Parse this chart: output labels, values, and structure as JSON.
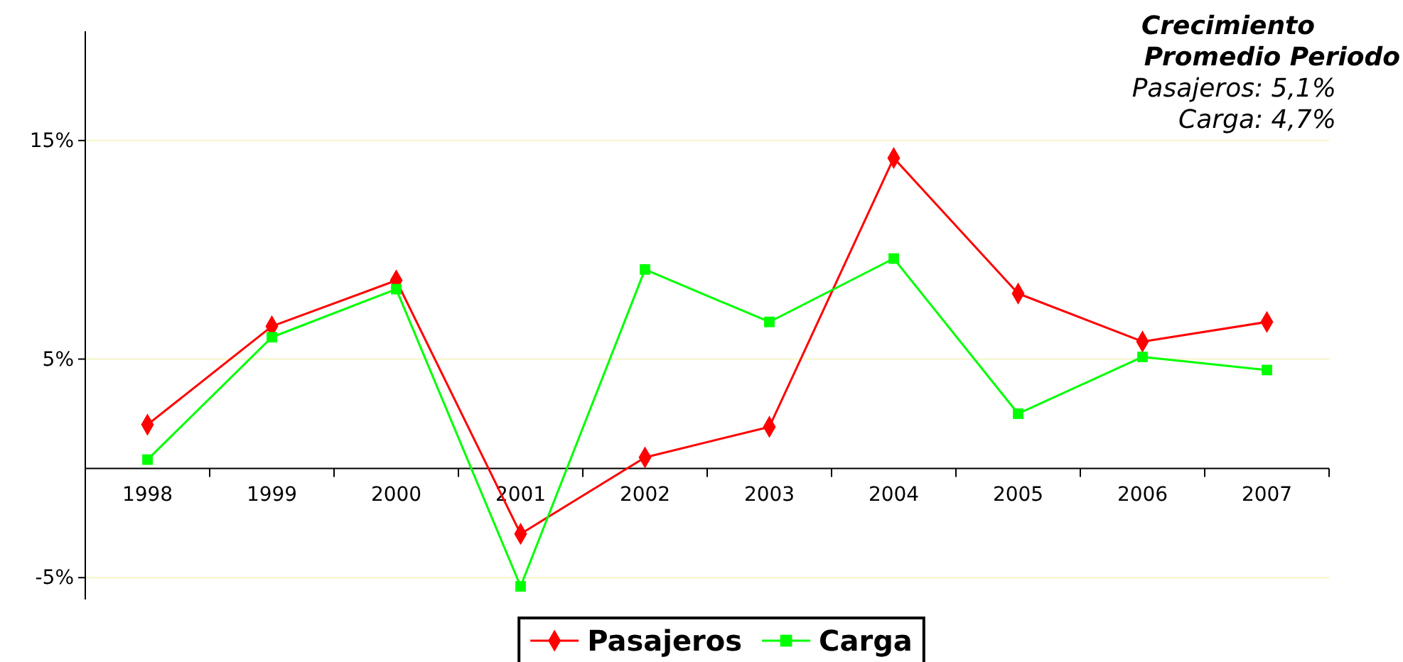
{
  "chart_data": {
    "type": "line",
    "categories": [
      "1998",
      "1999",
      "2000",
      "2001",
      "2002",
      "2003",
      "2004",
      "2005",
      "2006",
      "2007"
    ],
    "series": [
      {
        "name": "Pasajeros",
        "color": "#ff0000",
        "marker": "diamond",
        "values": [
          2.0,
          6.5,
          8.6,
          -3.0,
          0.5,
          1.9,
          14.2,
          8.0,
          5.8,
          6.7
        ]
      },
      {
        "name": "Carga",
        "color": "#00ff00",
        "marker": "square",
        "values": [
          0.4,
          6.0,
          8.2,
          -5.4,
          9.1,
          6.7,
          9.6,
          2.5,
          5.1,
          4.5
        ]
      }
    ],
    "ylim": [
      -6,
      20
    ],
    "yticks": [
      {
        "value": -5,
        "label": "-5%"
      },
      {
        "value": 5,
        "label": "5%"
      },
      {
        "value": 15,
        "label": "15%"
      }
    ],
    "grid": "y",
    "legend": "bottom",
    "annotations": [
      "Crecimiento Promedio Periodo",
      "Pasajeros: 5,1%",
      "Carga: 4,7%"
    ]
  }
}
